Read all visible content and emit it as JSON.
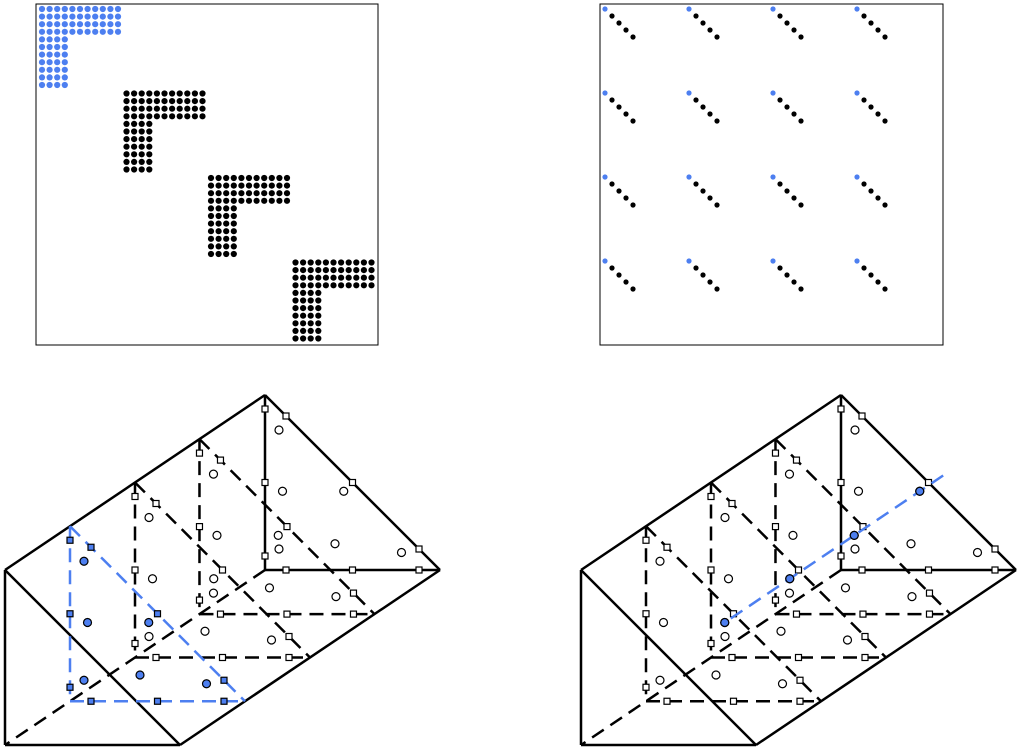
{
  "colors": {
    "ink": "#000000",
    "accent": "#4d7ff0",
    "background": "#ffffff"
  },
  "panels": {
    "top_left": {
      "description_shown": false,
      "blocks": 4,
      "block_grid": 11,
      "highlighted_block": 1
    },
    "top_right": {
      "block_rows": 4,
      "block_cols": 4,
      "points_per_diagonal": 5,
      "highlighted_point": "first-of-each-diagonal"
    },
    "bottom_left": {
      "prism_slices": 4,
      "highlighted_slice": "front"
    },
    "bottom_right": {
      "prism_slices": 4,
      "highlighted_line": "diagonal-through-slices"
    }
  }
}
